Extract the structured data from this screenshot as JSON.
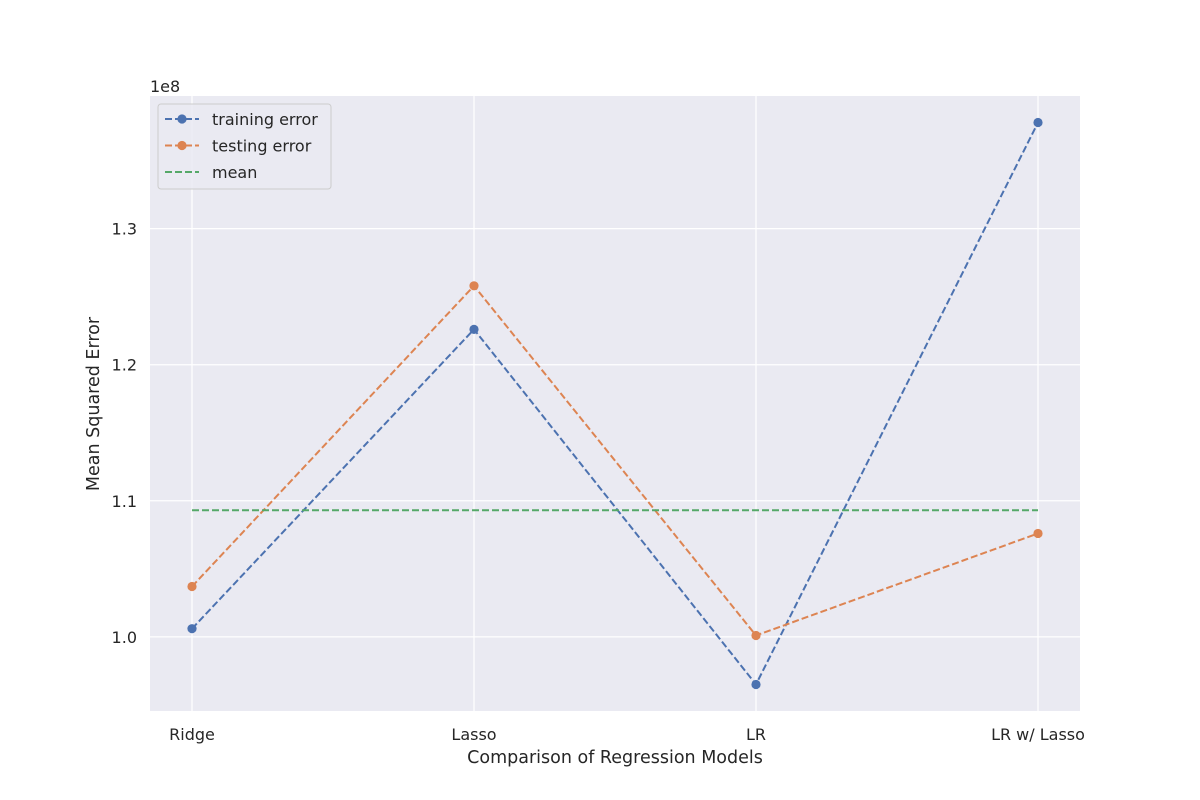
{
  "chart_data": {
    "type": "line",
    "title": "",
    "xlabel": "Comparison of Regression Models",
    "ylabel": "Mean Squared Error",
    "categories": [
      "Ridge",
      "Lasso",
      "LR",
      "LR w/ Lasso"
    ],
    "y_offset_label": "1e8",
    "y_scale_factor": 100000000,
    "ylim": [
      0.9455,
      1.3975
    ],
    "yticks": [
      1.0,
      1.1,
      1.2,
      1.3
    ],
    "ytick_labels": [
      "1.0",
      "1.1",
      "1.2",
      "1.3"
    ],
    "grid": true,
    "legend_position": "upper-left",
    "series": [
      {
        "name": "training error",
        "values": [
          1.006,
          1.226,
          0.965,
          1.378
        ],
        "color": "#4c72b0",
        "style": "dashed",
        "marker": "circle"
      },
      {
        "name": "testing error",
        "values": [
          1.037,
          1.258,
          1.001,
          1.076
        ],
        "color": "#dd8452",
        "style": "dashed",
        "marker": "circle"
      },
      {
        "name": "mean",
        "values": [
          1.093,
          1.093,
          1.093,
          1.093
        ],
        "color": "#55a868",
        "style": "dashed",
        "marker": "none"
      }
    ]
  }
}
